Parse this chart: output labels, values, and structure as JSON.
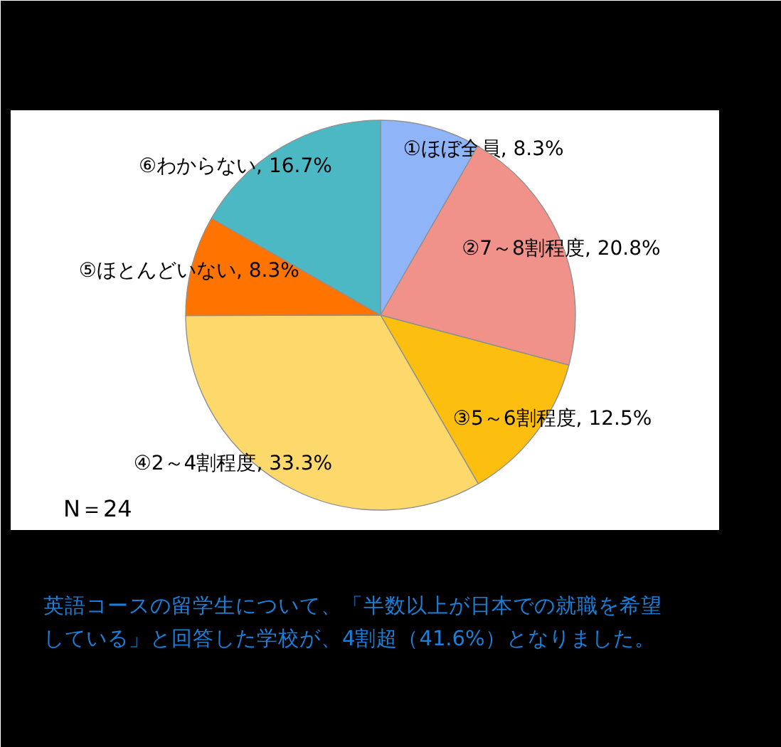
{
  "chart_data": {
    "type": "pie",
    "categories": [
      "①ほぼ全員",
      "②7～8割程度",
      "③5～6割程度",
      "④2～4割程度",
      "⑤ほとんどいない",
      "⑥わからない"
    ],
    "values": [
      8.3,
      20.8,
      12.5,
      33.3,
      8.3,
      16.7
    ],
    "colors": [
      "#8fb4f7",
      "#f0918a",
      "#fdbf0f",
      "#fdd96c",
      "#ff7300",
      "#4bb8c4"
    ],
    "value_labels": [
      ", 8.3%",
      ", 20.8%",
      ", 12.5%",
      ", 33.3%",
      ", 8.3%",
      ", 16.7%"
    ],
    "annotations": [
      "N＝24",
      "英語コースの留学生について、「半数以上が日本での就職を希望している」と回答した学校が、4割超（41.6%）となりました。"
    ]
  }
}
